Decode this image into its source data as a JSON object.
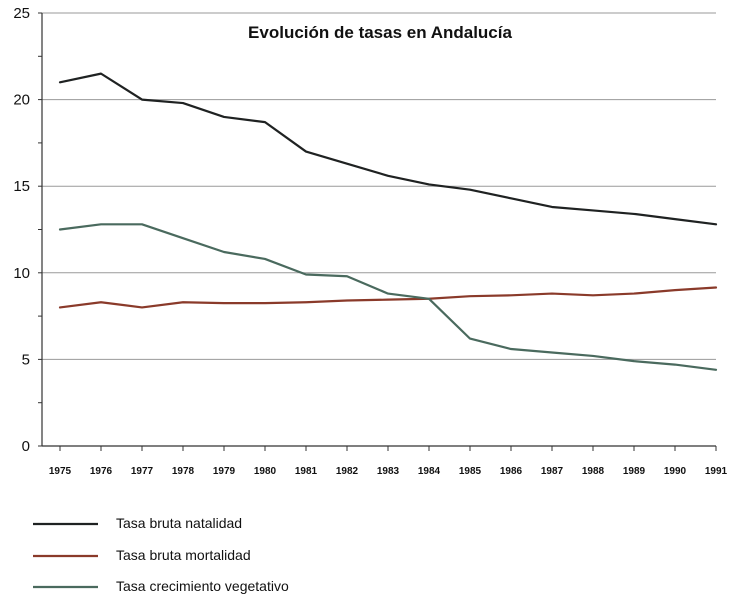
{
  "chart_data": {
    "type": "line",
    "title": "Evolución de tasas en Andalucía",
    "xlabel": "",
    "ylabel": "",
    "ylim": [
      0,
      25
    ],
    "yticks": [
      "0",
      "5",
      "10",
      "15",
      "20",
      "25"
    ],
    "x": [
      "1975",
      "1976",
      "1977",
      "1978",
      "1979",
      "1980",
      "1981",
      "1982",
      "1983",
      "1984",
      "1985",
      "1986",
      "1987",
      "1988",
      "1989",
      "1990",
      "1991"
    ],
    "grid": true,
    "legend_position": "bottom-left",
    "series": [
      {
        "name": "Tasa bruta natalidad",
        "color": "#1f2222",
        "values": [
          21.0,
          21.5,
          20.0,
          19.8,
          19.0,
          18.7,
          17.0,
          16.3,
          15.6,
          15.1,
          14.8,
          14.3,
          13.8,
          13.6,
          13.4,
          13.1,
          12.8
        ]
      },
      {
        "name": "Tasa bruta mortalidad",
        "color": "#8a3a2a",
        "values": [
          8.0,
          8.3,
          8.0,
          8.3,
          8.25,
          8.25,
          8.3,
          8.4,
          8.45,
          8.5,
          8.65,
          8.7,
          8.8,
          8.7,
          8.8,
          9.0,
          9.15
        ]
      },
      {
        "name": "Tasa crecimiento vegetativo",
        "color": "#4a6a5e",
        "values": [
          12.5,
          12.8,
          12.8,
          12.0,
          11.2,
          10.8,
          9.9,
          9.8,
          8.8,
          8.5,
          6.2,
          5.6,
          5.4,
          5.2,
          4.9,
          4.7,
          4.4
        ]
      }
    ]
  }
}
